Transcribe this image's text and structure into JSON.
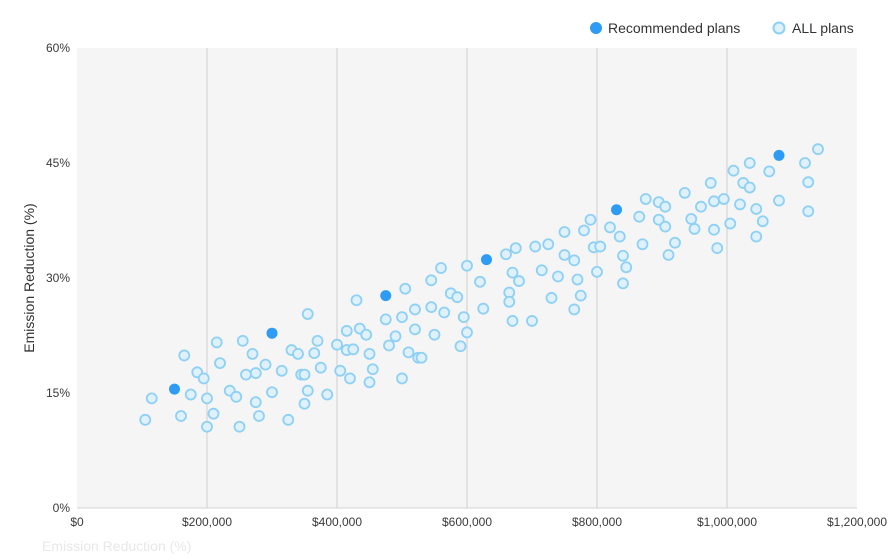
{
  "chart_data": {
    "type": "scatter",
    "ylabel": "Emission Reduction (%)",
    "xlim": [
      0,
      1200000
    ],
    "ylim": [
      0,
      60
    ],
    "x_ticks": [
      0,
      200000,
      400000,
      600000,
      800000,
      1000000,
      1200000
    ],
    "x_tick_labels": [
      "$0",
      "$200,000",
      "$400,000",
      "$600,000",
      "$800,000",
      "$1,000,000",
      "$1,200,000"
    ],
    "y_ticks": [
      0,
      15,
      30,
      45,
      60
    ],
    "y_tick_labels": [
      "0%",
      "15%",
      "30%",
      "45%",
      "60%"
    ],
    "grid": "vertical",
    "background": "#f5f5f5",
    "legend_position": "top-right",
    "ghost_label": "Emission Reduction (%)",
    "series": [
      {
        "name": "Recommended plans",
        "color": "#2e9cf4",
        "marker": "filled",
        "points": [
          [
            150000,
            15.5
          ],
          [
            300000,
            22.8
          ],
          [
            475000,
            27.7
          ],
          [
            630000,
            32.4
          ],
          [
            830000,
            38.9
          ],
          [
            1080000,
            46.0
          ]
        ]
      },
      {
        "name": "ALL plans",
        "color": "#8fd0f5",
        "marker": "hollow",
        "points": [
          [
            105000,
            11.5
          ],
          [
            115000,
            14.3
          ],
          [
            160000,
            12.0
          ],
          [
            165000,
            19.9
          ],
          [
            175000,
            14.8
          ],
          [
            185000,
            17.7
          ],
          [
            195000,
            16.9
          ],
          [
            200000,
            10.6
          ],
          [
            200000,
            14.3
          ],
          [
            210000,
            12.3
          ],
          [
            215000,
            21.6
          ],
          [
            220000,
            18.9
          ],
          [
            235000,
            15.3
          ],
          [
            245000,
            14.5
          ],
          [
            250000,
            10.6
          ],
          [
            255000,
            21.8
          ],
          [
            260000,
            17.4
          ],
          [
            270000,
            20.1
          ],
          [
            275000,
            17.6
          ],
          [
            275000,
            13.8
          ],
          [
            280000,
            12.0
          ],
          [
            290000,
            18.7
          ],
          [
            300000,
            15.1
          ],
          [
            315000,
            17.9
          ],
          [
            325000,
            11.5
          ],
          [
            330000,
            20.6
          ],
          [
            340000,
            20.1
          ],
          [
            345000,
            17.4
          ],
          [
            350000,
            13.6
          ],
          [
            350000,
            17.4
          ],
          [
            355000,
            25.3
          ],
          [
            355000,
            15.3
          ],
          [
            365000,
            20.2
          ],
          [
            370000,
            21.8
          ],
          [
            375000,
            18.3
          ],
          [
            385000,
            14.8
          ],
          [
            400000,
            21.3
          ],
          [
            405000,
            17.9
          ],
          [
            415000,
            23.1
          ],
          [
            415000,
            20.6
          ],
          [
            420000,
            16.9
          ],
          [
            425000,
            20.7
          ],
          [
            430000,
            27.1
          ],
          [
            435000,
            23.4
          ],
          [
            445000,
            22.6
          ],
          [
            450000,
            20.1
          ],
          [
            450000,
            16.4
          ],
          [
            455000,
            18.1
          ],
          [
            475000,
            24.6
          ],
          [
            480000,
            21.2
          ],
          [
            490000,
            22.4
          ],
          [
            500000,
            24.9
          ],
          [
            500000,
            16.9
          ],
          [
            505000,
            28.6
          ],
          [
            510000,
            20.3
          ],
          [
            520000,
            23.3
          ],
          [
            520000,
            25.9
          ],
          [
            525000,
            19.6
          ],
          [
            530000,
            19.6
          ],
          [
            545000,
            26.2
          ],
          [
            545000,
            29.7
          ],
          [
            550000,
            22.6
          ],
          [
            560000,
            31.3
          ],
          [
            565000,
            25.5
          ],
          [
            575000,
            28.0
          ],
          [
            585000,
            27.5
          ],
          [
            590000,
            21.1
          ],
          [
            595000,
            24.9
          ],
          [
            600000,
            31.6
          ],
          [
            600000,
            22.9
          ],
          [
            620000,
            29.5
          ],
          [
            625000,
            26.0
          ],
          [
            660000,
            33.1
          ],
          [
            665000,
            28.1
          ],
          [
            665000,
            26.9
          ],
          [
            670000,
            30.7
          ],
          [
            670000,
            24.4
          ],
          [
            675000,
            33.9
          ],
          [
            680000,
            29.6
          ],
          [
            700000,
            24.4
          ],
          [
            705000,
            34.1
          ],
          [
            715000,
            31.0
          ],
          [
            725000,
            34.4
          ],
          [
            730000,
            27.4
          ],
          [
            740000,
            30.2
          ],
          [
            750000,
            36.0
          ],
          [
            750000,
            33.0
          ],
          [
            765000,
            25.9
          ],
          [
            765000,
            32.3
          ],
          [
            770000,
            29.8
          ],
          [
            775000,
            27.7
          ],
          [
            780000,
            36.2
          ],
          [
            790000,
            37.6
          ],
          [
            795000,
            34.0
          ],
          [
            800000,
            30.8
          ],
          [
            805000,
            34.1
          ],
          [
            820000,
            36.6
          ],
          [
            835000,
            35.4
          ],
          [
            840000,
            32.9
          ],
          [
            840000,
            29.3
          ],
          [
            845000,
            31.4
          ],
          [
            865000,
            38.0
          ],
          [
            870000,
            34.4
          ],
          [
            875000,
            40.3
          ],
          [
            895000,
            39.9
          ],
          [
            895000,
            37.6
          ],
          [
            905000,
            39.3
          ],
          [
            905000,
            36.7
          ],
          [
            910000,
            33.0
          ],
          [
            920000,
            34.6
          ],
          [
            935000,
            41.1
          ],
          [
            945000,
            37.7
          ],
          [
            950000,
            36.4
          ],
          [
            960000,
            39.3
          ],
          [
            975000,
            42.4
          ],
          [
            980000,
            36.3
          ],
          [
            980000,
            40.0
          ],
          [
            985000,
            33.9
          ],
          [
            995000,
            40.3
          ],
          [
            1005000,
            37.1
          ],
          [
            1010000,
            44.0
          ],
          [
            1020000,
            39.6
          ],
          [
            1025000,
            42.4
          ],
          [
            1035000,
            41.8
          ],
          [
            1035000,
            45.0
          ],
          [
            1045000,
            39.0
          ],
          [
            1045000,
            35.4
          ],
          [
            1055000,
            37.4
          ],
          [
            1065000,
            43.9
          ],
          [
            1080000,
            40.1
          ],
          [
            1120000,
            45.0
          ],
          [
            1125000,
            42.5
          ],
          [
            1125000,
            38.7
          ],
          [
            1140000,
            46.8
          ]
        ]
      }
    ]
  }
}
